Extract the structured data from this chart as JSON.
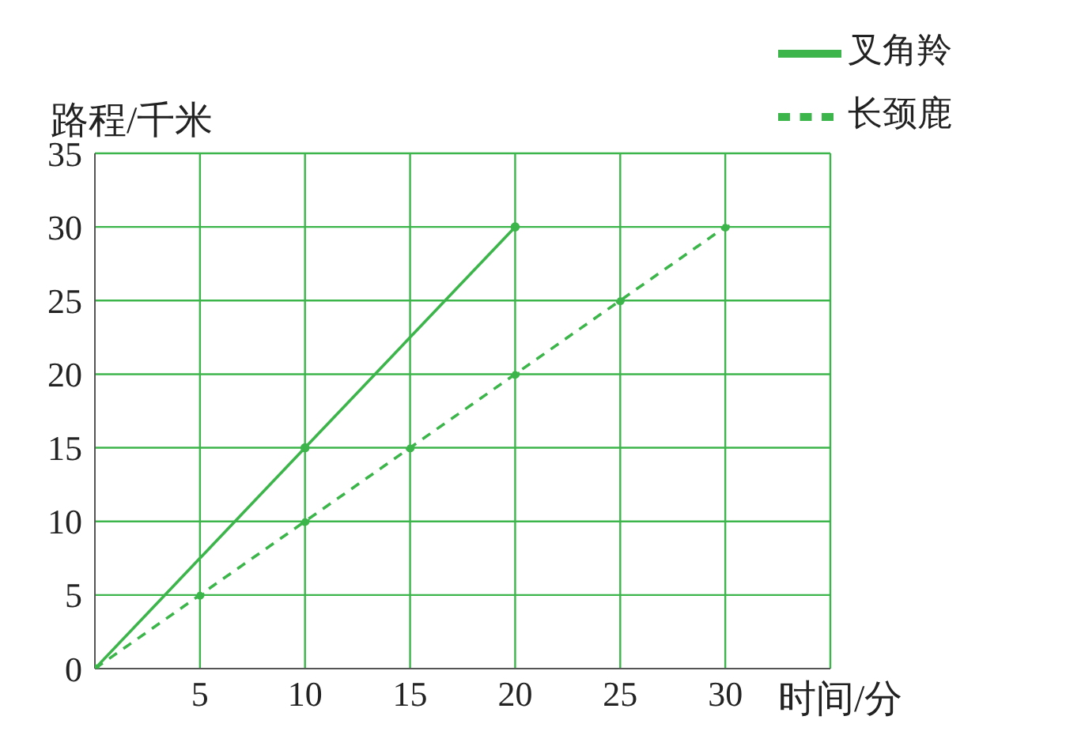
{
  "chart_data": {
    "type": "line",
    "xlabel": "时间/分",
    "ylabel": "路程/千米",
    "xlim": [
      0,
      35
    ],
    "ylim": [
      0,
      35
    ],
    "xticks": [
      {
        "value": 0,
        "label": null
      },
      5,
      10,
      15,
      20,
      25,
      30,
      {
        "value": 35,
        "label": null
      }
    ],
    "yticks": [
      0,
      5,
      10,
      15,
      20,
      25,
      30,
      35
    ],
    "grid": true,
    "legend": "top right",
    "marker": "circle",
    "series": [
      {
        "name": "叉角羚",
        "color": "#3cb54a",
        "x": [
          0,
          10,
          20
        ],
        "values": [
          0,
          15,
          30
        ],
        "line_style": "solid"
      },
      {
        "name": "长颈鹿",
        "color": "#3cb54a",
        "x": [
          0,
          5,
          10,
          15,
          20,
          25,
          30
        ],
        "values": [
          0,
          5,
          10,
          15,
          20,
          25,
          30
        ],
        "line_style": "dashed"
      }
    ]
  }
}
